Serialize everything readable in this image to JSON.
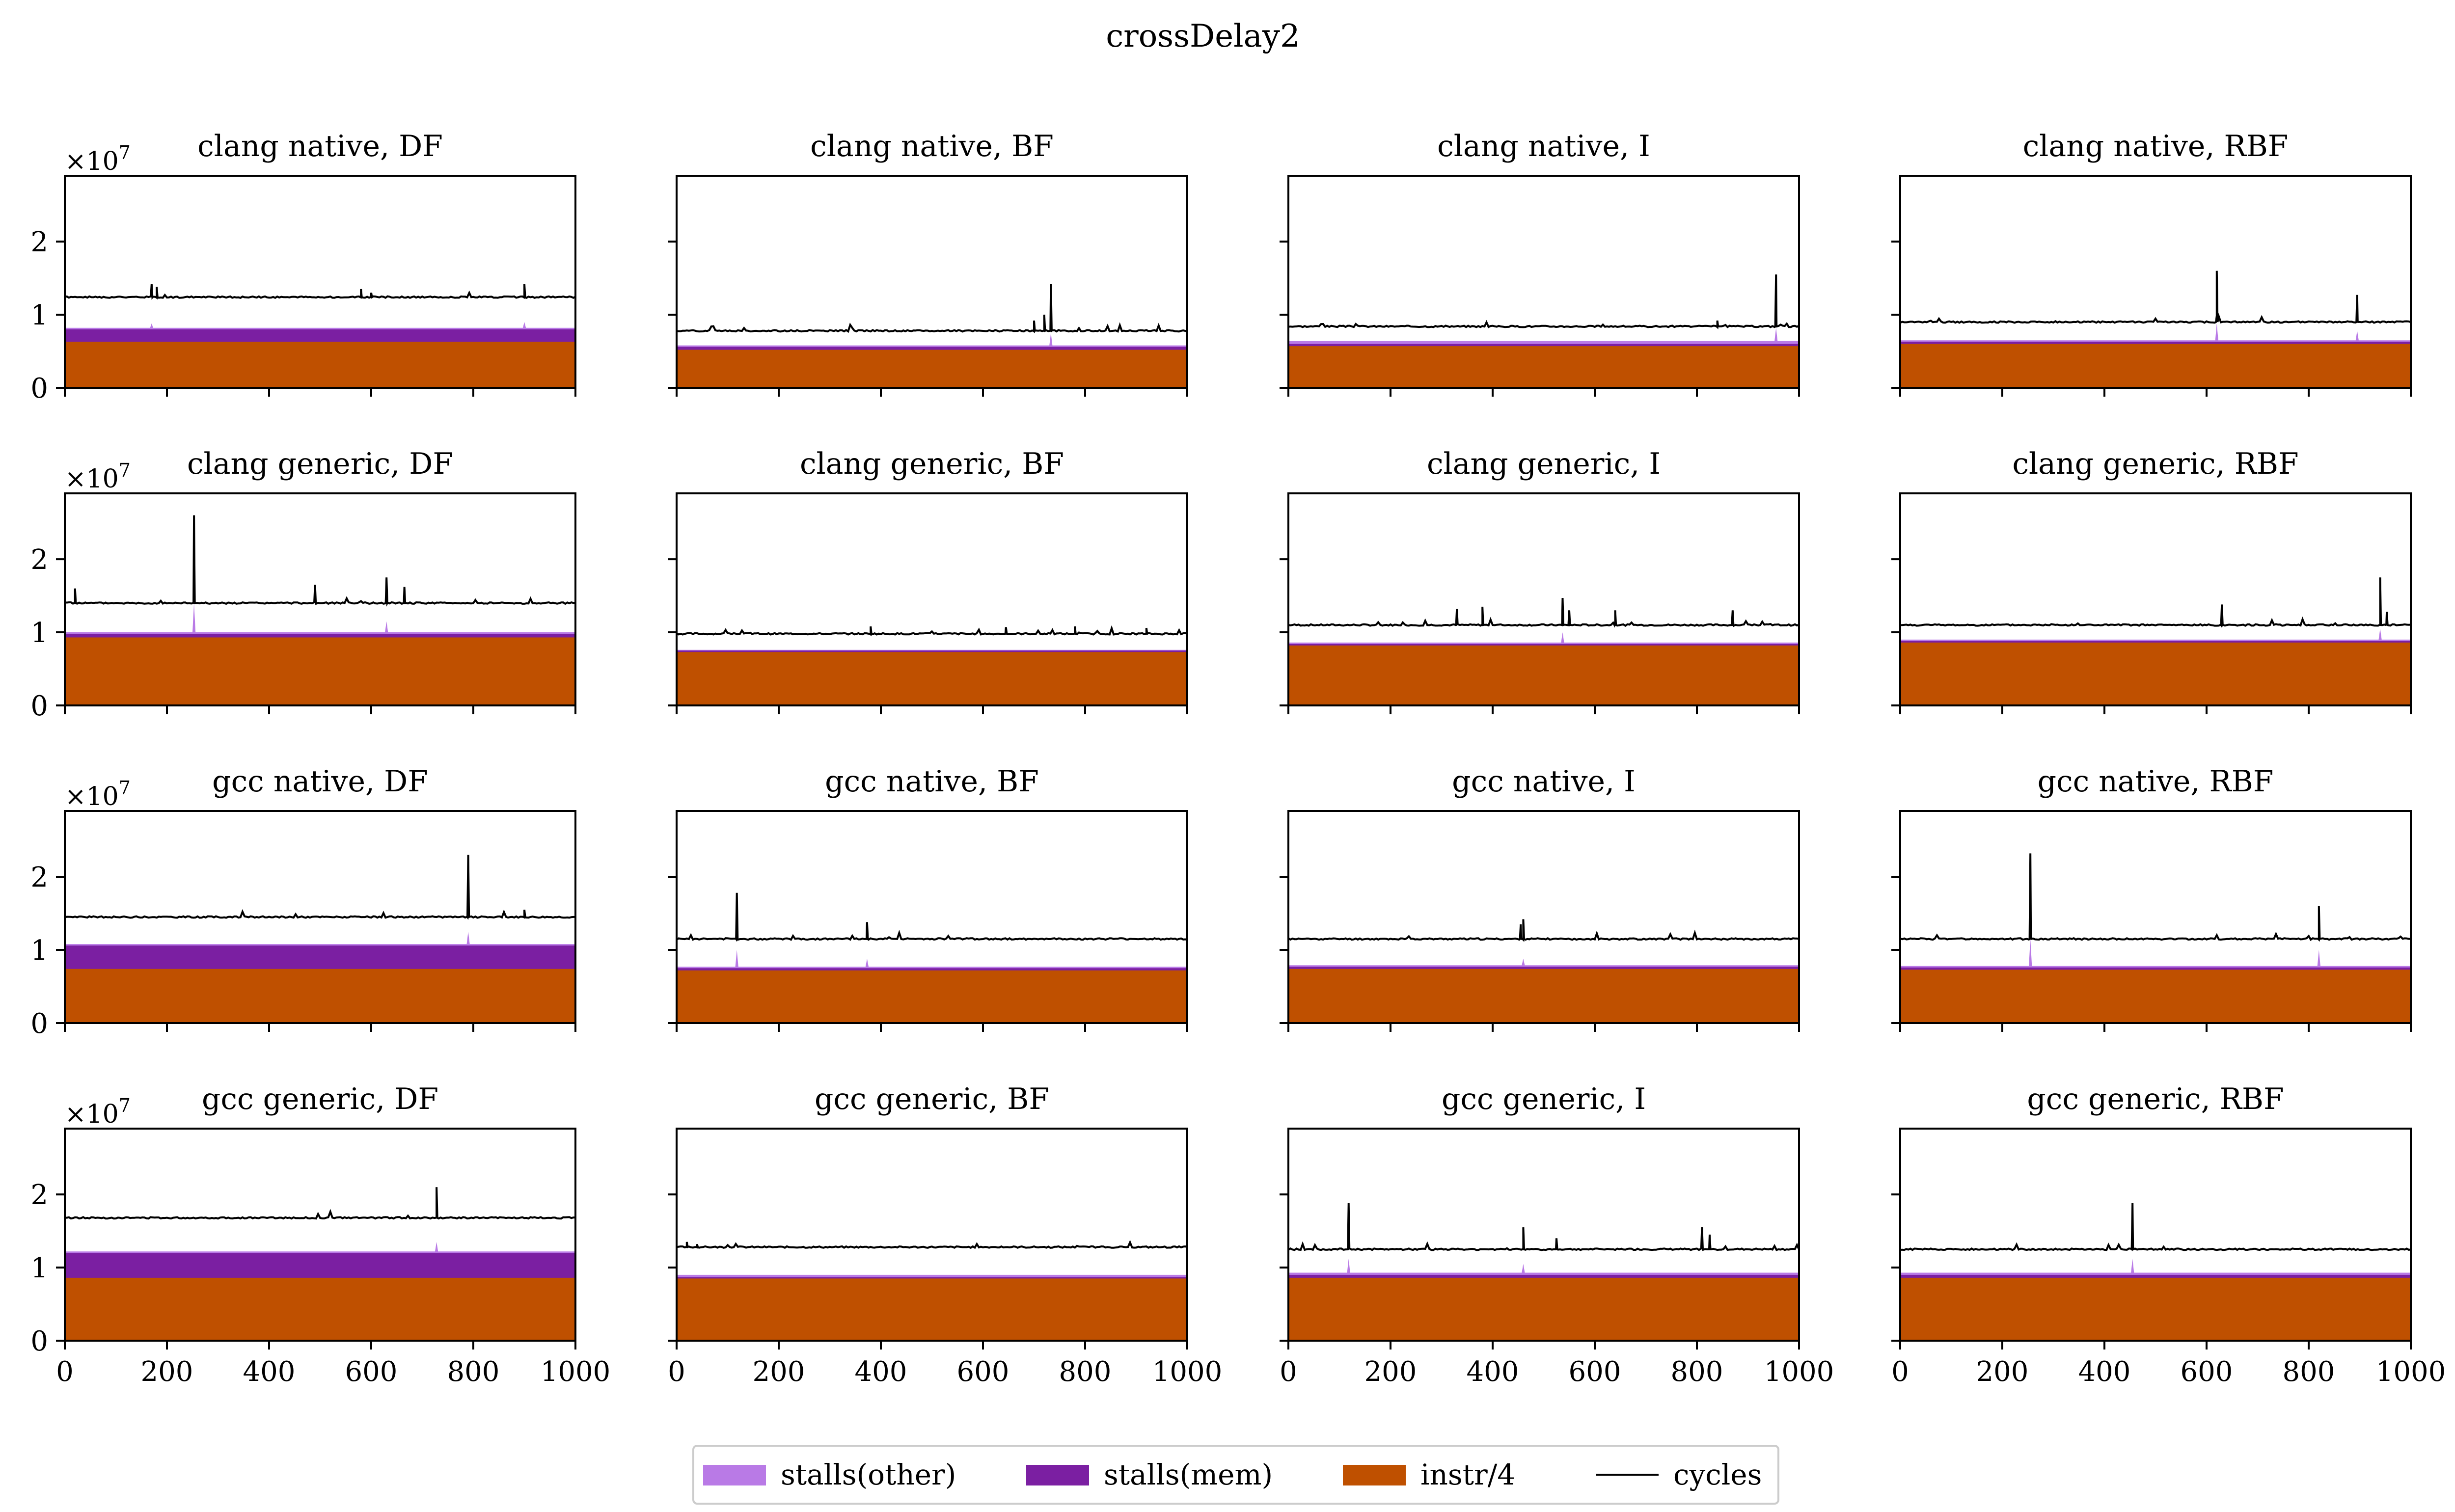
{
  "chart_data": {
    "type": "area",
    "title": "crossDelay2",
    "grid": false,
    "legend_position": "bottom-center",
    "scale_label": "×10",
    "scale_exponent": "7",
    "x_ticks": [
      0,
      200,
      400,
      600,
      800,
      1000
    ],
    "x_tick_labels": [
      "0",
      "200",
      "400",
      "600",
      "800",
      "1000"
    ],
    "y_ticks": [
      0,
      1,
      2
    ],
    "y_tick_labels": [
      "0",
      "1",
      "2"
    ],
    "xlim": [
      0,
      1000
    ],
    "ylim": [
      0,
      2.9
    ],
    "colors": {
      "stalls_other": "#b97ae6",
      "stalls_mem": "#7b1fa2",
      "instr": "#bf5000",
      "cycles": "#000000"
    },
    "legend": [
      {
        "key": "stalls_other",
        "label": "stalls(other)",
        "kind": "patch"
      },
      {
        "key": "stalls_mem",
        "label": "stalls(mem)",
        "kind": "patch"
      },
      {
        "key": "instr",
        "label": "instr/4",
        "kind": "patch"
      },
      {
        "key": "cycles",
        "label": "cycles",
        "kind": "line"
      }
    ],
    "panels": [
      {
        "title": "clang native, DF",
        "instr": 0.63,
        "mem": 0.8,
        "other": 0.82,
        "cycles": 1.24,
        "spikes": [
          [
            170,
            1.42
          ],
          [
            180,
            1.38
          ],
          [
            580,
            1.35
          ],
          [
            600,
            1.3
          ],
          [
            900,
            1.42
          ]
        ],
        "other_spikes": [
          [
            170,
            0.88
          ],
          [
            900,
            0.9
          ]
        ]
      },
      {
        "title": "clang native, BF",
        "instr": 0.52,
        "mem": 0.56,
        "other": 0.58,
        "cycles": 0.78,
        "spikes": [
          [
            700,
            0.92
          ],
          [
            720,
            1.0
          ],
          [
            733,
            1.42
          ]
        ],
        "other_spikes": [
          [
            733,
            0.75
          ]
        ]
      },
      {
        "title": "clang native, I",
        "instr": 0.57,
        "mem": 0.6,
        "other": 0.64,
        "cycles": 0.84,
        "spikes": [
          [
            840,
            0.92
          ],
          [
            955,
            1.55
          ]
        ],
        "other_spikes": [
          [
            955,
            0.82
          ]
        ]
      },
      {
        "title": "clang native, RBF",
        "instr": 0.6,
        "mem": 0.63,
        "other": 0.65,
        "cycles": 0.9,
        "spikes": [
          [
            620,
            1.6
          ],
          [
            895,
            1.27
          ]
        ],
        "other_spikes": [
          [
            620,
            0.88
          ],
          [
            895,
            0.78
          ]
        ]
      },
      {
        "title": "clang generic, DF",
        "instr": 0.93,
        "mem": 0.98,
        "other": 1.0,
        "cycles": 1.4,
        "spikes": [
          [
            20,
            1.6
          ],
          [
            253,
            2.6
          ],
          [
            490,
            1.65
          ],
          [
            630,
            1.75
          ],
          [
            665,
            1.62
          ]
        ],
        "other_spikes": [
          [
            253,
            1.4
          ],
          [
            630,
            1.15
          ]
        ]
      },
      {
        "title": "clang generic, BF",
        "instr": 0.73,
        "mem": 0.75,
        "other": 0.76,
        "cycles": 0.98,
        "spikes": [
          [
            380,
            1.08
          ],
          [
            645,
            1.07
          ],
          [
            780,
            1.08
          ],
          [
            920,
            1.06
          ]
        ],
        "other_spikes": []
      },
      {
        "title": "clang generic, I",
        "instr": 0.82,
        "mem": 0.84,
        "other": 0.86,
        "cycles": 1.1,
        "spikes": [
          [
            330,
            1.32
          ],
          [
            380,
            1.35
          ],
          [
            537,
            1.47
          ],
          [
            550,
            1.3
          ],
          [
            640,
            1.3
          ],
          [
            870,
            1.3
          ]
        ],
        "other_spikes": [
          [
            537,
            1.0
          ]
        ]
      },
      {
        "title": "clang generic, RBF",
        "instr": 0.86,
        "mem": 0.88,
        "other": 0.9,
        "cycles": 1.1,
        "spikes": [
          [
            630,
            1.38
          ],
          [
            940,
            1.75
          ],
          [
            953,
            1.28
          ]
        ],
        "other_spikes": [
          [
            940,
            1.05
          ]
        ]
      },
      {
        "title": "gcc native, DF",
        "instr": 0.74,
        "mem": 1.06,
        "other": 1.08,
        "cycles": 1.45,
        "spikes": [
          [
            790,
            2.3
          ],
          [
            900,
            1.55
          ]
        ],
        "other_spikes": [
          [
            790,
            1.25
          ]
        ]
      },
      {
        "title": "gcc native, BF",
        "instr": 0.72,
        "mem": 0.75,
        "other": 0.77,
        "cycles": 1.15,
        "spikes": [
          [
            118,
            1.78
          ],
          [
            373,
            1.38
          ]
        ],
        "other_spikes": [
          [
            118,
            1.0
          ],
          [
            373,
            0.88
          ]
        ]
      },
      {
        "title": "gcc native, I",
        "instr": 0.74,
        "mem": 0.77,
        "other": 0.79,
        "cycles": 1.15,
        "spikes": [
          [
            455,
            1.35
          ],
          [
            460,
            1.42
          ]
        ],
        "other_spikes": [
          [
            460,
            0.88
          ]
        ]
      },
      {
        "title": "gcc native, RBF",
        "instr": 0.73,
        "mem": 0.76,
        "other": 0.78,
        "cycles": 1.15,
        "spikes": [
          [
            255,
            2.32
          ],
          [
            820,
            1.6
          ]
        ],
        "other_spikes": [
          [
            255,
            1.15
          ],
          [
            820,
            1.0
          ]
        ]
      },
      {
        "title": "gcc generic, DF",
        "instr": 0.86,
        "mem": 1.2,
        "other": 1.22,
        "cycles": 1.68,
        "spikes": [
          [
            728,
            2.1
          ]
        ],
        "other_spikes": [
          [
            728,
            1.35
          ]
        ]
      },
      {
        "title": "gcc generic, BF",
        "instr": 0.85,
        "mem": 0.87,
        "other": 0.9,
        "cycles": 1.28,
        "spikes": [
          [
            20,
            1.35
          ],
          [
            40,
            1.32
          ]
        ],
        "other_spikes": []
      },
      {
        "title": "gcc generic, I",
        "instr": 0.86,
        "mem": 0.9,
        "other": 0.93,
        "cycles": 1.25,
        "spikes": [
          [
            118,
            1.88
          ],
          [
            460,
            1.55
          ],
          [
            525,
            1.4
          ],
          [
            810,
            1.55
          ],
          [
            825,
            1.45
          ]
        ],
        "other_spikes": [
          [
            118,
            1.12
          ],
          [
            460,
            1.05
          ]
        ]
      },
      {
        "title": "gcc generic, RBF",
        "instr": 0.86,
        "mem": 0.9,
        "other": 0.93,
        "cycles": 1.25,
        "spikes": [
          [
            455,
            1.88
          ]
        ],
        "other_spikes": [
          [
            455,
            1.12
          ]
        ]
      }
    ]
  }
}
